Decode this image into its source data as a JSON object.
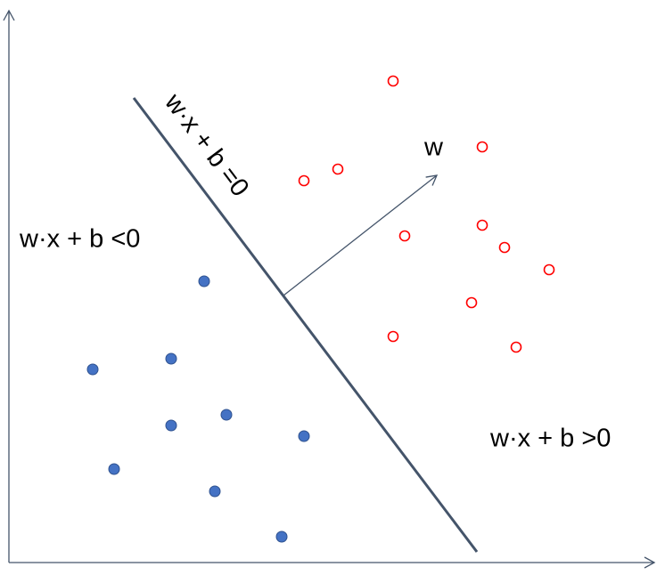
{
  "labels": {
    "boundary": "w·x + b =0",
    "negative_region": "w·x + b <0",
    "positive_region": "w·x + b >0",
    "normal_vector": "w"
  }
}
